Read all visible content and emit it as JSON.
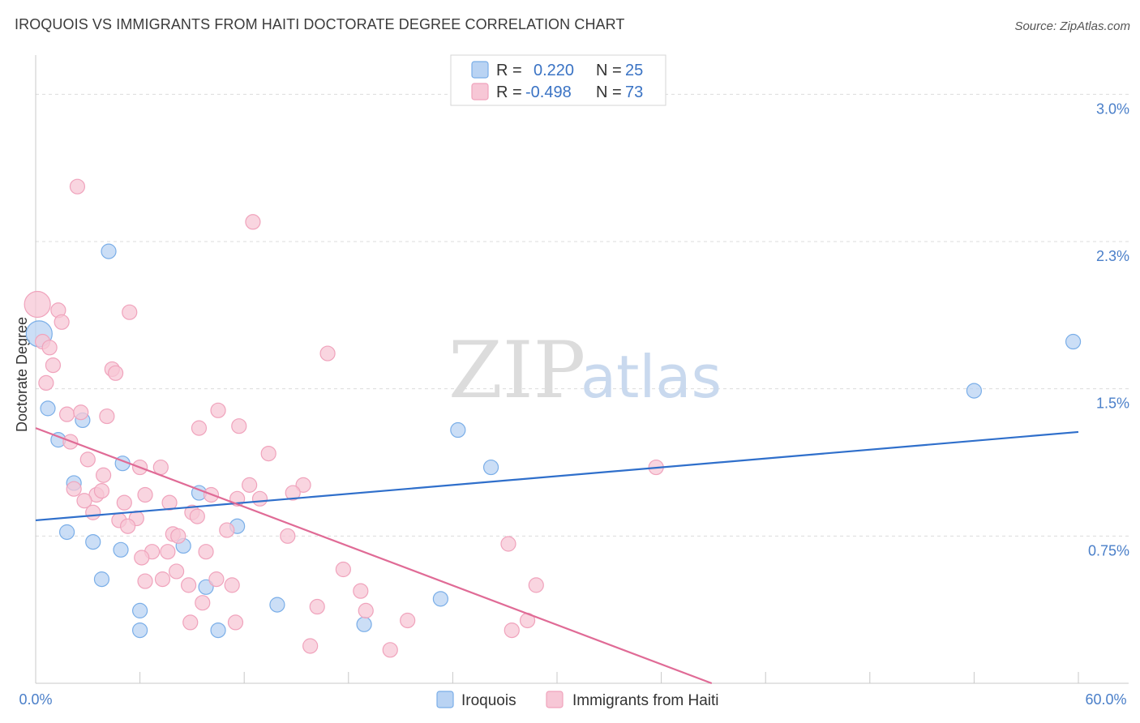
{
  "chart_data": {
    "type": "scatter",
    "title": "IROQUOIS VS IMMIGRANTS FROM HAITI DOCTORATE DEGREE CORRELATION CHART",
    "source": "Source: ZipAtlas.com",
    "ylabel": "Doctorate Degree",
    "xlim": [
      0,
      60
    ],
    "ylim": [
      0,
      3.15
    ],
    "x_tick_labels": [
      "0.0%",
      "60.0%"
    ],
    "y_ticks": [
      {
        "value": 0.75,
        "label": "0.75%"
      },
      {
        "value": 1.5,
        "label": "1.5%"
      },
      {
        "value": 2.25,
        "label": "2.3%"
      },
      {
        "value": 3.0,
        "label": "3.0%"
      }
    ],
    "watermark": {
      "part1": "ZIP",
      "part2": "atlas"
    },
    "legend": [
      {
        "r_label": "R =",
        "r_value": "0.220",
        "n_label": "N =",
        "n_value": "25"
      },
      {
        "r_label": "R =",
        "r_value": "-0.498",
        "n_label": "N =",
        "n_value": "73"
      }
    ],
    "series": [
      {
        "name": "Iroquois",
        "color": "#7aaee8",
        "fill": "#b9d3f3",
        "line_color": "#2f6fcb",
        "trend": {
          "x0": 0,
          "y0": 0.83,
          "x1": 60,
          "y1": 1.28
        },
        "points": [
          [
            0.2,
            1.78,
            16
          ],
          [
            4.2,
            2.2,
            9
          ],
          [
            0.7,
            1.4,
            9
          ],
          [
            1.3,
            1.24,
            9
          ],
          [
            2.7,
            1.34,
            9
          ],
          [
            5.0,
            1.12,
            9
          ],
          [
            2.2,
            1.02,
            9
          ],
          [
            9.4,
            0.97,
            9
          ],
          [
            11.6,
            0.8,
            9
          ],
          [
            1.8,
            0.77,
            9
          ],
          [
            3.3,
            0.72,
            9
          ],
          [
            4.9,
            0.68,
            9
          ],
          [
            8.5,
            0.7,
            9
          ],
          [
            3.8,
            0.53,
            9
          ],
          [
            9.8,
            0.49,
            9
          ],
          [
            6.0,
            0.37,
            9
          ],
          [
            13.9,
            0.4,
            9
          ],
          [
            23.3,
            0.43,
            9
          ],
          [
            6.0,
            0.27,
            9
          ],
          [
            10.5,
            0.27,
            9
          ],
          [
            18.9,
            0.3,
            9
          ],
          [
            24.3,
            1.29,
            9
          ],
          [
            26.2,
            1.1,
            9
          ],
          [
            54.0,
            1.49,
            9
          ],
          [
            59.7,
            1.74,
            9
          ]
        ]
      },
      {
        "name": "Immigrants from Haiti",
        "color": "#f0a3bc",
        "fill": "#f7c7d6",
        "line_color": "#e06b96",
        "trend": {
          "x0": 0,
          "y0": 1.3,
          "x1": 38.9,
          "y1": 0.0
        },
        "points": [
          [
            0.1,
            1.93,
            16
          ],
          [
            2.4,
            2.53,
            9
          ],
          [
            12.5,
            2.35,
            9
          ],
          [
            1.3,
            1.9,
            9
          ],
          [
            1.5,
            1.84,
            9
          ],
          [
            5.4,
            1.89,
            9
          ],
          [
            0.4,
            1.74,
            9
          ],
          [
            0.8,
            1.71,
            9
          ],
          [
            1.0,
            1.62,
            9
          ],
          [
            0.6,
            1.53,
            9
          ],
          [
            4.4,
            1.6,
            9
          ],
          [
            4.6,
            1.58,
            9
          ],
          [
            16.8,
            1.68,
            9
          ],
          [
            1.8,
            1.37,
            9
          ],
          [
            2.6,
            1.38,
            9
          ],
          [
            4.1,
            1.36,
            9
          ],
          [
            10.5,
            1.39,
            9
          ],
          [
            9.4,
            1.3,
            9
          ],
          [
            11.7,
            1.31,
            9
          ],
          [
            2.0,
            1.23,
            9
          ],
          [
            3.0,
            1.14,
            9
          ],
          [
            13.4,
            1.17,
            9
          ],
          [
            3.9,
            1.06,
            9
          ],
          [
            6.0,
            1.1,
            9
          ],
          [
            7.2,
            1.1,
            9
          ],
          [
            12.3,
            1.01,
            9
          ],
          [
            15.4,
            1.01,
            9
          ],
          [
            2.2,
            0.99,
            9
          ],
          [
            3.5,
            0.96,
            9
          ],
          [
            3.8,
            0.98,
            9
          ],
          [
            6.3,
            0.96,
            9
          ],
          [
            10.1,
            0.96,
            9
          ],
          [
            14.8,
            0.97,
            9
          ],
          [
            2.8,
            0.93,
            9
          ],
          [
            5.1,
            0.92,
            9
          ],
          [
            7.7,
            0.92,
            9
          ],
          [
            11.6,
            0.94,
            9
          ],
          [
            12.9,
            0.94,
            9
          ],
          [
            3.3,
            0.87,
            9
          ],
          [
            9.0,
            0.87,
            9
          ],
          [
            9.3,
            0.85,
            9
          ],
          [
            4.8,
            0.83,
            9
          ],
          [
            5.8,
            0.84,
            9
          ],
          [
            5.3,
            0.8,
            9
          ],
          [
            11.0,
            0.78,
            9
          ],
          [
            7.9,
            0.76,
            9
          ],
          [
            8.2,
            0.75,
            9
          ],
          [
            14.5,
            0.75,
            9
          ],
          [
            6.7,
            0.67,
            9
          ],
          [
            7.6,
            0.67,
            9
          ],
          [
            9.8,
            0.67,
            9
          ],
          [
            6.1,
            0.64,
            9
          ],
          [
            8.1,
            0.57,
            9
          ],
          [
            17.7,
            0.58,
            9
          ],
          [
            6.3,
            0.52,
            9
          ],
          [
            7.3,
            0.53,
            9
          ],
          [
            10.4,
            0.53,
            9
          ],
          [
            8.8,
            0.5,
            9
          ],
          [
            11.3,
            0.5,
            9
          ],
          [
            18.7,
            0.47,
            9
          ],
          [
            9.6,
            0.41,
            9
          ],
          [
            16.2,
            0.39,
            9
          ],
          [
            19.0,
            0.37,
            9
          ],
          [
            8.9,
            0.31,
            9
          ],
          [
            11.5,
            0.31,
            9
          ],
          [
            21.4,
            0.32,
            9
          ],
          [
            15.8,
            0.19,
            9
          ],
          [
            20.4,
            0.17,
            9
          ],
          [
            27.2,
            0.71,
            9
          ],
          [
            28.8,
            0.5,
            9
          ],
          [
            27.4,
            0.27,
            9
          ],
          [
            28.3,
            0.32,
            9
          ],
          [
            35.7,
            1.1,
            9
          ]
        ]
      }
    ]
  }
}
